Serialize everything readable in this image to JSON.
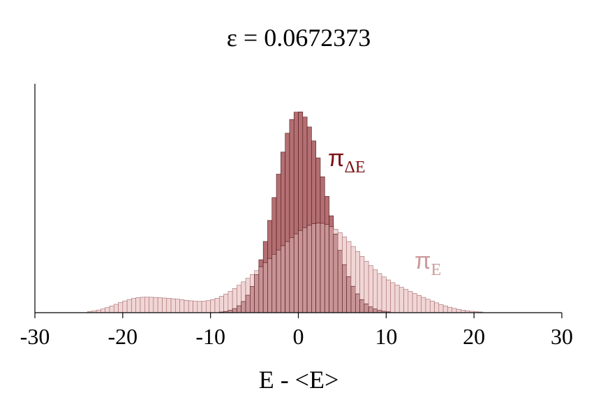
{
  "chart_data": {
    "type": "bar",
    "title": "ε = 0.0672373",
    "xlabel": "E - <E>",
    "ylabel": "",
    "xlim": [
      -30,
      30
    ],
    "ylim": [
      0,
      1.0
    ],
    "xticks": [
      -30,
      -20,
      -10,
      0,
      10,
      20,
      30
    ],
    "bin_width": 0.5,
    "colors": {
      "pi_dE_fill": "#b36f72",
      "pi_dE_stroke": "#4d1518",
      "pi_E_fill": "#f1d6d6",
      "pi_E_stroke": "#a56a6c",
      "overlap_fill": "#c99496",
      "pi_dE_label": "#7a1216",
      "pi_E_label": "#cc9a9b"
    },
    "series": [
      {
        "name": "πΔE",
        "label_main": "π",
        "label_sub": "ΔE",
        "shape": {
          "type": "gaussian",
          "center": 0.0,
          "sigma_left": 2.6,
          "sigma_right": 3.1,
          "peak": 0.88
        }
      },
      {
        "name": "πE",
        "label_main": "π",
        "label_sub": "E",
        "shape": {
          "type": "mixture",
          "components": [
            {
              "center": 3.0,
              "sigma": 4.2,
              "amp": 0.36
            },
            {
              "center": -4.0,
              "sigma": 4.0,
              "amp": 0.12
            },
            {
              "center": -18.5,
              "sigma": 2.4,
              "amp": 0.055
            },
            {
              "center": -14.0,
              "sigma": 2.5,
              "amp": 0.045
            },
            {
              "center": 12.0,
              "sigma": 3.5,
              "amp": 0.07
            }
          ]
        }
      }
    ]
  }
}
